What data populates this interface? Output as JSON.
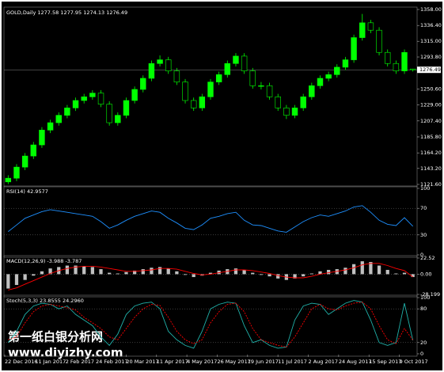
{
  "chart_data": [
    {
      "type": "candlestick",
      "title": "GOLD,Daily 1277.58 1277.95 1274.13 1276.49",
      "up_color": "#00ff00",
      "down_color": "#000000",
      "grid": false,
      "open": [
        1125,
        1130,
        1145,
        1160,
        1175,
        1195,
        1205,
        1215,
        1225,
        1235,
        1240,
        1245,
        1230,
        1205,
        1215,
        1235,
        1250,
        1265,
        1285,
        1290,
        1275,
        1260,
        1235,
        1225,
        1240,
        1260,
        1270,
        1285,
        1295,
        1275,
        1255,
        1255,
        1240,
        1225,
        1215,
        1225,
        1240,
        1255,
        1265,
        1270,
        1280,
        1290,
        1320,
        1340,
        1330,
        1300,
        1285,
        1275,
        1277.58
      ],
      "high": [
        1134,
        1149,
        1164,
        1179,
        1199,
        1209,
        1219,
        1229,
        1239,
        1244,
        1249,
        1249,
        1234,
        1219,
        1239,
        1254,
        1269,
        1289,
        1296,
        1294,
        1279,
        1264,
        1239,
        1244,
        1264,
        1274,
        1289,
        1299,
        1299,
        1279,
        1260,
        1259,
        1244,
        1229,
        1229,
        1244,
        1259,
        1269,
        1274,
        1284,
        1294,
        1324,
        1352,
        1344,
        1334,
        1304,
        1289,
        1304,
        1277.95
      ],
      "low": [
        1122,
        1126,
        1141,
        1156,
        1171,
        1191,
        1201,
        1211,
        1221,
        1231,
        1236,
        1226,
        1201,
        1201,
        1211,
        1231,
        1246,
        1261,
        1281,
        1271,
        1256,
        1231,
        1221,
        1221,
        1236,
        1256,
        1266,
        1281,
        1271,
        1251,
        1250,
        1236,
        1221,
        1210,
        1211,
        1221,
        1236,
        1251,
        1261,
        1266,
        1276,
        1286,
        1316,
        1326,
        1296,
        1281,
        1271,
        1271,
        1274.13
      ],
      "close": [
        1130,
        1145,
        1160,
        1175,
        1195,
        1205,
        1215,
        1225,
        1235,
        1240,
        1245,
        1230,
        1205,
        1215,
        1235,
        1250,
        1265,
        1285,
        1290,
        1275,
        1260,
        1235,
        1225,
        1240,
        1260,
        1270,
        1285,
        1295,
        1275,
        1255,
        1255,
        1240,
        1225,
        1215,
        1225,
        1240,
        1255,
        1265,
        1270,
        1280,
        1290,
        1320,
        1340,
        1330,
        1300,
        1285,
        1275,
        1300,
        1276.49
      ],
      "ylim": [
        1121.6,
        1358.0
      ],
      "yticks": [
        {
          "value": 1358.0,
          "label": "1358.00"
        },
        {
          "value": 1336.4,
          "label": "1336.40"
        },
        {
          "value": 1315.0,
          "label": "1315.00"
        },
        {
          "value": 1293.8,
          "label": "1293.80"
        },
        {
          "value": 1250.6,
          "label": "1250.60"
        },
        {
          "value": 1229.0,
          "label": "1229.00"
        },
        {
          "value": 1207.4,
          "label": "1207.40"
        },
        {
          "value": 1185.8,
          "label": "1185.80"
        },
        {
          "value": 1164.2,
          "label": "1164.20"
        },
        {
          "value": 1143.2,
          "label": "1143.20"
        },
        {
          "value": 1121.6,
          "label": "1121.60"
        }
      ],
      "xticks": [
        {
          "value": 0,
          "label": "22 Dec 2016"
        },
        {
          "value": 3.6,
          "label": "11 Jan 2017"
        },
        {
          "value": 7.2,
          "label": "2 Feb 2017"
        },
        {
          "value": 10.8,
          "label": "24 Feb 2017"
        },
        {
          "value": 14.4,
          "label": "20 Mar 2017"
        },
        {
          "value": 18,
          "label": "11 Apr 2017"
        },
        {
          "value": 21.6,
          "label": "4 May 2017"
        },
        {
          "value": 25.2,
          "label": "26 May 2017"
        },
        {
          "value": 28.8,
          "label": "19 Jun 2017"
        },
        {
          "value": 32.4,
          "label": "11 Jul 2017"
        },
        {
          "value": 36,
          "label": "2 Aug 2017"
        },
        {
          "value": 39.6,
          "label": "24 Aug 2017"
        },
        {
          "value": 43.2,
          "label": "15 Sep 2017"
        },
        {
          "value": 46.8,
          "label": "9 Oct 2017"
        }
      ],
      "annotations": [
        "第一纸白银分析网",
        "www.diyizhy.com"
      ]
    },
    {
      "type": "line",
      "title": "RSI(14) 42.9577",
      "grid": true,
      "ylim": [
        0,
        100
      ],
      "yticks": [
        100,
        70,
        30,
        0
      ],
      "series": [
        {
          "color": "#1e90ff",
          "values": [
            35,
            45,
            55,
            60,
            65,
            68,
            66,
            64,
            62,
            60,
            58,
            50,
            40,
            45,
            52,
            58,
            62,
            66,
            64,
            55,
            48,
            40,
            38,
            45,
            55,
            58,
            62,
            64,
            52,
            45,
            44,
            40,
            36,
            34,
            42,
            50,
            56,
            60,
            58,
            62,
            66,
            72,
            74,
            64,
            52,
            46,
            44,
            56,
            42.9577
          ]
        }
      ]
    },
    {
      "type": "bar",
      "title": "MACD(12,26,9) -3.988 -3.787",
      "grid": true,
      "ylim": [
        -28.199,
        22.52
      ],
      "yticks": [
        {
          "value": 22.52,
          "label": "22.52"
        },
        {
          "value": 0,
          "label": "0.00"
        },
        {
          "value": -28.199,
          "label": "-28.199"
        }
      ],
      "series": [
        {
          "type": "bar",
          "color": "#c0c0c0",
          "values": [
            -20,
            -15,
            -8,
            -2,
            4,
            8,
            10,
            12,
            12,
            11,
            10,
            7,
            2,
            1,
            3,
            5,
            7,
            9,
            10,
            8,
            4,
            -1,
            -4,
            -2,
            2,
            5,
            7,
            8,
            6,
            2,
            -1,
            -3,
            -6,
            -8,
            -6,
            -3,
            1,
            4,
            6,
            7,
            9,
            14,
            18,
            17,
            12,
            6,
            1,
            2,
            -3.988
          ]
        },
        {
          "type": "line",
          "color": "#ff0000",
          "values": [
            -22,
            -19,
            -14,
            -9,
            -4,
            1,
            5,
            8,
            10,
            11,
            11,
            10,
            8,
            6,
            4,
            4,
            5,
            6,
            8,
            8,
            7,
            4,
            1,
            -1,
            0,
            2,
            4,
            6,
            6,
            5,
            3,
            1,
            -2,
            -4,
            -5,
            -5,
            -3,
            0,
            2,
            4,
            6,
            9,
            13,
            15,
            15,
            12,
            8,
            5,
            -3.787
          ]
        }
      ]
    },
    {
      "type": "line",
      "title": "Stoch(5,3,3) 23.8555 24.2960",
      "grid": true,
      "ylim": [
        0,
        100
      ],
      "yticks": [
        100,
        80,
        20,
        0
      ],
      "series": [
        {
          "color": "#20b2aa",
          "values": [
            20,
            40,
            70,
            85,
            90,
            88,
            80,
            85,
            70,
            60,
            50,
            30,
            15,
            35,
            70,
            85,
            90,
            92,
            80,
            40,
            25,
            15,
            10,
            40,
            80,
            88,
            92,
            90,
            50,
            20,
            25,
            15,
            10,
            12,
            60,
            85,
            90,
            88,
            70,
            80,
            90,
            95,
            92,
            60,
            20,
            15,
            20,
            90,
            23.8555
          ]
        },
        {
          "color": "#ff0000",
          "dash": true,
          "values": [
            25,
            30,
            55,
            75,
            85,
            88,
            85,
            82,
            78,
            65,
            55,
            45,
            30,
            25,
            45,
            65,
            80,
            88,
            86,
            65,
            40,
            25,
            18,
            25,
            55,
            75,
            88,
            90,
            75,
            45,
            25,
            20,
            15,
            12,
            30,
            55,
            80,
            88,
            80,
            78,
            85,
            90,
            92,
            80,
            50,
            25,
            18,
            45,
            24.296
          ]
        }
      ]
    }
  ]
}
